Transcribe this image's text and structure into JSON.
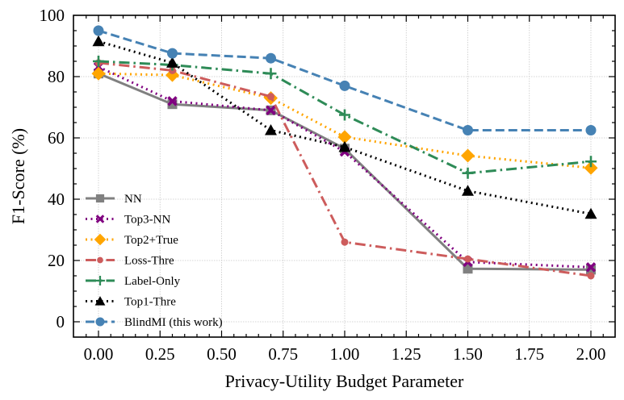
{
  "chart_data": {
    "type": "line",
    "title": "",
    "xlabel": "Privacy-Utility Budget Parameter",
    "ylabel": "F1-Score (%)",
    "xlim": [
      -0.1,
      2.1
    ],
    "ylim": [
      -5,
      100
    ],
    "xticks": [
      0.0,
      0.25,
      0.5,
      0.75,
      1.0,
      1.25,
      1.5,
      1.75,
      2.0
    ],
    "xtick_labels": [
      "0.00",
      "0.25",
      "0.50",
      "0.75",
      "1.00",
      "1.25",
      "1.50",
      "1.75",
      "2.00"
    ],
    "yticks": [
      0,
      20,
      40,
      60,
      80,
      100
    ],
    "ytick_labels": [
      "0",
      "20",
      "40",
      "60",
      "80",
      "100"
    ],
    "grid": true,
    "legend_position": "lower-left",
    "x": [
      0.0,
      0.3,
      0.7,
      1.0,
      1.5,
      2.0
    ],
    "series": [
      {
        "name": "NN",
        "color": "#808080",
        "marker": "square",
        "linestyle": "solid",
        "values": [
          81.0,
          71.0,
          69.0,
          56.5,
          17.3,
          17.0
        ]
      },
      {
        "name": "Top3-NN",
        "color": "#800080",
        "marker": "x",
        "linestyle": "dotted",
        "values": [
          83.2,
          72.0,
          69.0,
          55.5,
          19.5,
          17.8
        ]
      },
      {
        "name": "Top2+True",
        "color": "#FFA500",
        "marker": "diamond",
        "linestyle": "dotted",
        "values": [
          81.0,
          80.5,
          73.0,
          60.3,
          54.2,
          50.2
        ]
      },
      {
        "name": "Loss-Thre",
        "color": "#CD5C5C",
        "marker": "circle-small",
        "linestyle": "dashdot",
        "values": [
          84.5,
          82.0,
          73.5,
          26.0,
          20.5,
          15.0
        ]
      },
      {
        "name": "Label-Only",
        "color": "#2E8B57",
        "marker": "plus",
        "linestyle": "dashdot",
        "values": [
          85.0,
          83.8,
          81.0,
          67.5,
          48.5,
          52.3
        ]
      },
      {
        "name": "Top1-Thre",
        "color": "#000000",
        "marker": "triangle",
        "linestyle": "dotted",
        "values": [
          91.5,
          84.5,
          62.5,
          57.0,
          42.7,
          35.2
        ]
      },
      {
        "name": "BlindMI (this work)",
        "color": "#4682B4",
        "marker": "circle",
        "linestyle": "dashed",
        "values": [
          95.0,
          87.6,
          86.0,
          77.0,
          62.5,
          62.5
        ]
      }
    ]
  }
}
